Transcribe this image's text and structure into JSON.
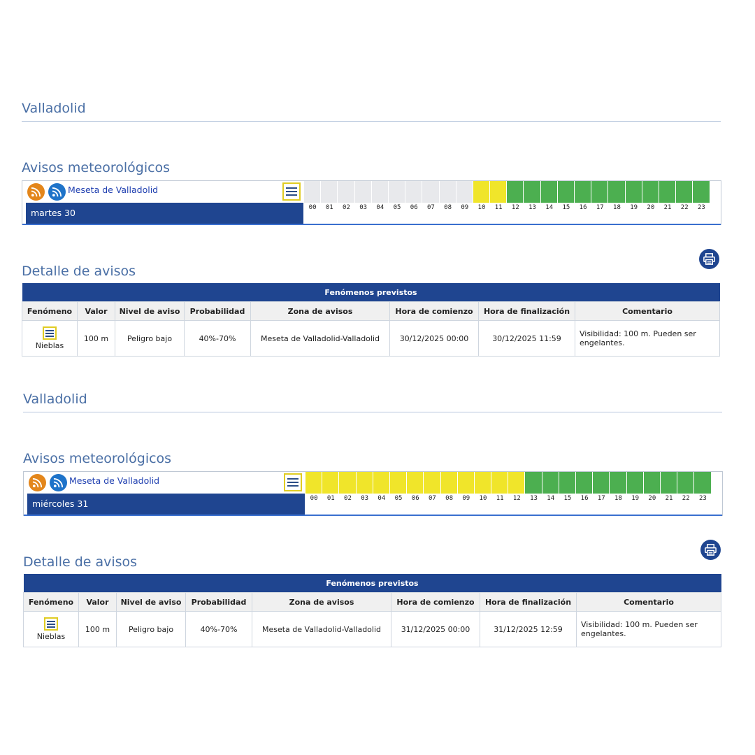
{
  "colors": {
    "title": "#4a6fa5",
    "navy": "#1f4590",
    "yellow": "#f0e52a",
    "green": "#4caf50",
    "grey": "#e8e9ec"
  },
  "panels": [
    {
      "region": "Valladolid",
      "avisos_title": "Avisos meteorológicos",
      "zone": "Meseta de Valladolid",
      "day": "martes 30",
      "hour_levels": [
        "grey",
        "grey",
        "grey",
        "grey",
        "grey",
        "grey",
        "grey",
        "grey",
        "grey",
        "grey",
        "yellow",
        "yellow",
        "green",
        "green",
        "green",
        "green",
        "green",
        "green",
        "green",
        "green",
        "green",
        "green",
        "green",
        "green"
      ],
      "detalle_title": "Detalle de avisos",
      "table_title": "Fenómenos previstos",
      "columns": [
        "Fenómeno",
        "Valor",
        "Nivel de aviso",
        "Probabilidad",
        "Zona de avisos",
        "Hora de comienzo",
        "Hora de finalización",
        "Comentario"
      ],
      "row": {
        "fenomeno": "Nieblas",
        "valor": "100 m",
        "nivel": "Peligro bajo",
        "probabilidad": "40%-70%",
        "zona": "Meseta de Valladolid-Valladolid",
        "inicio": "30/12/2025 00:00",
        "fin": "30/12/2025 11:59",
        "comentario": "Visibilidad: 100 m. Pueden ser engelantes."
      }
    },
    {
      "region": "Valladolid",
      "avisos_title": "Avisos meteorológicos",
      "zone": "Meseta de Valladolid",
      "day": "miércoles 31",
      "hour_levels": [
        "yellow",
        "yellow",
        "yellow",
        "yellow",
        "yellow",
        "yellow",
        "yellow",
        "yellow",
        "yellow",
        "yellow",
        "yellow",
        "yellow",
        "yellow",
        "green",
        "green",
        "green",
        "green",
        "green",
        "green",
        "green",
        "green",
        "green",
        "green",
        "green"
      ],
      "detalle_title": "Detalle de avisos",
      "table_title": "Fenómenos previstos",
      "columns": [
        "Fenómeno",
        "Valor",
        "Nivel de aviso",
        "Probabilidad",
        "Zona de avisos",
        "Hora de comienzo",
        "Hora de finalización",
        "Comentario"
      ],
      "row": {
        "fenomeno": "Nieblas",
        "valor": "100 m",
        "nivel": "Peligro bajo",
        "probabilidad": "40%-70%",
        "zona": "Meseta de Valladolid-Valladolid",
        "inicio": "31/12/2025 00:00",
        "fin": "31/12/2025 12:59",
        "comentario": "Visibilidad: 100 m. Pueden ser engelantes."
      }
    }
  ],
  "hours": [
    "00",
    "01",
    "02",
    "03",
    "04",
    "05",
    "06",
    "07",
    "08",
    "09",
    "10",
    "11",
    "12",
    "13",
    "14",
    "15",
    "16",
    "17",
    "18",
    "19",
    "20",
    "21",
    "22",
    "23"
  ]
}
